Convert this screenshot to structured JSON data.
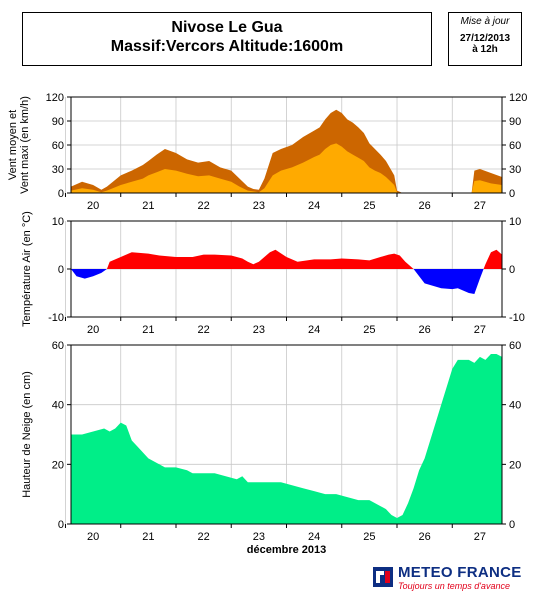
{
  "header": {
    "title": "Nivose Le Gua",
    "subtitle": "Massif:Vercors Altitude:1600m",
    "issue_label": "Mise à jour",
    "issue_date": "27/12/2013",
    "issue_time": "à 12h"
  },
  "brand": {
    "name": "METEO FRANCE",
    "tagline": "Toujours un temps d'avance",
    "name_color": "#0d2e82",
    "tagline_color": "#e2001a",
    "logo_icon": "meteo-france-logo-icon"
  },
  "chart_data": [
    {
      "type": "area",
      "ylabel": "Vent moyen et Vent maxi (en km/h)",
      "ylim": [
        0,
        120
      ],
      "yticks": [
        0,
        30,
        60,
        90,
        120
      ],
      "x_start": 19.6,
      "x_end": 27.4,
      "xticks": [
        20,
        21,
        22,
        23,
        24,
        25,
        26,
        27
      ],
      "grid": true,
      "colors": {
        "maxi": "#cc6600",
        "moyen": "#ffaa00"
      },
      "series": [
        {
          "key": "maxi",
          "x": [
            19.6,
            19.8,
            20.0,
            20.15,
            20.25,
            20.5,
            20.7,
            20.9,
            21.0,
            21.15,
            21.3,
            21.5,
            21.7,
            21.9,
            22.1,
            22.3,
            22.5,
            22.65,
            22.8,
            22.9,
            23.0,
            23.1,
            23.25,
            23.4,
            23.6,
            23.8,
            24.0,
            24.1,
            24.2,
            24.3,
            24.4,
            24.5,
            24.6,
            24.7,
            24.8,
            24.9,
            25.0,
            25.1,
            25.2,
            25.3,
            25.45,
            25.5,
            25.6,
            26.0,
            26.5,
            26.85,
            26.9,
            27.0,
            27.2,
            27.4
          ],
          "values": [
            8,
            14,
            10,
            4,
            8,
            22,
            28,
            35,
            40,
            48,
            55,
            50,
            42,
            38,
            40,
            32,
            28,
            18,
            8,
            5,
            4,
            18,
            50,
            55,
            60,
            70,
            78,
            82,
            92,
            100,
            104,
            100,
            92,
            88,
            82,
            75,
            62,
            55,
            48,
            40,
            22,
            3,
            0,
            0,
            0,
            0,
            28,
            30,
            25,
            20
          ]
        },
        {
          "key": "moyen",
          "x": [
            19.6,
            19.8,
            20.0,
            20.15,
            20.25,
            20.5,
            20.7,
            20.9,
            21.0,
            21.15,
            21.3,
            21.5,
            21.7,
            21.9,
            22.1,
            22.3,
            22.5,
            22.65,
            22.8,
            22.9,
            23.0,
            23.1,
            23.25,
            23.4,
            23.6,
            23.8,
            24.0,
            24.1,
            24.2,
            24.3,
            24.4,
            24.5,
            24.6,
            24.7,
            24.8,
            24.9,
            25.0,
            25.1,
            25.2,
            25.3,
            25.45,
            25.5,
            25.6,
            26.0,
            26.5,
            26.85,
            26.9,
            27.0,
            27.2,
            27.4
          ],
          "values": [
            3,
            6,
            4,
            1,
            3,
            10,
            14,
            18,
            22,
            26,
            30,
            28,
            24,
            21,
            22,
            18,
            14,
            8,
            3,
            2,
            1,
            6,
            22,
            28,
            32,
            38,
            45,
            48,
            55,
            60,
            62,
            58,
            52,
            48,
            44,
            40,
            32,
            28,
            25,
            20,
            10,
            1,
            0,
            0,
            0,
            0,
            15,
            16,
            12,
            10
          ]
        }
      ]
    },
    {
      "type": "area",
      "ylabel": "Température Air (en °C)",
      "ylim": [
        -10,
        10
      ],
      "yticks": [
        -10,
        0,
        10
      ],
      "x_start": 19.6,
      "x_end": 27.4,
      "xticks": [
        20,
        21,
        22,
        23,
        24,
        25,
        26,
        27
      ],
      "grid": true,
      "colors": {
        "positive": "#ff0000",
        "negative": "#0000ff"
      },
      "series": [
        {
          "key": "temperature",
          "x": [
            19.6,
            19.7,
            19.85,
            20.0,
            20.15,
            20.25,
            20.3,
            20.5,
            20.7,
            21.0,
            21.2,
            21.5,
            21.8,
            22.0,
            22.2,
            22.5,
            22.7,
            22.8,
            22.9,
            23.0,
            23.1,
            23.2,
            23.3,
            23.5,
            23.7,
            24.0,
            24.3,
            24.5,
            24.8,
            25.0,
            25.2,
            25.35,
            25.45,
            25.55,
            25.65,
            25.8,
            26.0,
            26.3,
            26.5,
            26.6,
            26.7,
            26.8,
            26.9,
            27.0,
            27.1,
            27.2,
            27.3,
            27.4
          ],
          "values": [
            0,
            -1.5,
            -2.0,
            -1.5,
            -0.8,
            0,
            1.5,
            2.5,
            3.5,
            3.2,
            2.8,
            2.5,
            2.5,
            3.0,
            3.0,
            2.8,
            2.2,
            1.5,
            1.0,
            1.5,
            2.5,
            3.5,
            4.0,
            2.5,
            1.5,
            2.0,
            2.0,
            2.2,
            2.0,
            1.8,
            2.5,
            3.0,
            3.2,
            2.8,
            1.5,
            0,
            -3.0,
            -4.0,
            -4.2,
            -4.0,
            -4.5,
            -5.0,
            -5.2,
            -2.0,
            1.0,
            3.5,
            4.0,
            3.0
          ]
        }
      ]
    },
    {
      "type": "area",
      "ylabel": "Hauteur de Neige (en cm)",
      "xlabel": "décembre 2013",
      "ylim": [
        0,
        60
      ],
      "yticks": [
        0,
        20,
        40,
        60
      ],
      "x_start": 19.6,
      "x_end": 27.4,
      "xticks": [
        20,
        21,
        22,
        23,
        24,
        25,
        26,
        27
      ],
      "grid": true,
      "colors": {
        "snow": "#00ee88"
      },
      "series": [
        {
          "key": "snow",
          "x": [
            19.6,
            19.8,
            20.0,
            20.2,
            20.3,
            20.4,
            20.5,
            20.6,
            20.7,
            20.8,
            20.9,
            21.0,
            21.1,
            21.2,
            21.3,
            21.5,
            21.7,
            21.8,
            22.0,
            22.2,
            22.4,
            22.6,
            22.7,
            22.8,
            22.9,
            23.0,
            23.2,
            23.4,
            23.6,
            23.8,
            24.0,
            24.2,
            24.4,
            24.6,
            24.8,
            25.0,
            25.1,
            25.2,
            25.3,
            25.35,
            25.4,
            25.5,
            25.6,
            25.7,
            25.8,
            25.9,
            26.0,
            26.1,
            26.2,
            26.3,
            26.4,
            26.5,
            26.6,
            26.7,
            26.8,
            26.9,
            27.0,
            27.1,
            27.2,
            27.3,
            27.4
          ],
          "values": [
            30,
            30,
            31,
            32,
            31,
            32,
            34,
            33,
            28,
            26,
            24,
            22,
            21,
            20,
            19,
            19,
            18,
            17,
            17,
            17,
            16,
            15,
            16,
            14,
            14,
            14,
            14,
            14,
            13,
            12,
            11,
            10,
            10,
            9,
            8,
            8,
            7,
            6,
            5,
            4,
            3,
            2,
            3,
            7,
            12,
            18,
            22,
            28,
            34,
            40,
            46,
            52,
            55,
            55,
            55,
            54,
            56,
            55,
            57,
            57,
            56
          ]
        }
      ]
    }
  ]
}
